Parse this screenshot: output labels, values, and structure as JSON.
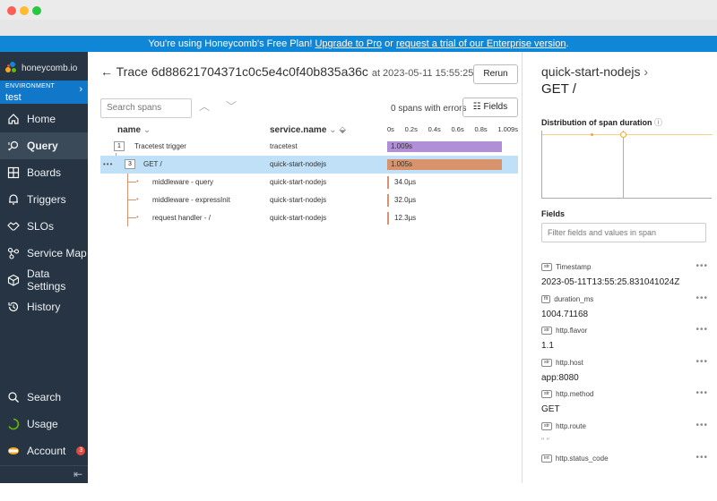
{
  "banner": {
    "prefix": "You're using Honeycomb's Free Plan! ",
    "upgrade": "Upgrade to Pro",
    "mid": " or ",
    "trial": "request a trial of our Enterprise version",
    "suffix": "."
  },
  "sidebar": {
    "logo": "honeycomb.io",
    "environment_label": "ENVIRONMENT",
    "environment_value": "test",
    "items": [
      {
        "label": "Home",
        "icon": "home-icon"
      },
      {
        "label": "Query",
        "icon": "query-icon"
      },
      {
        "label": "Boards",
        "icon": "boards-icon"
      },
      {
        "label": "Triggers",
        "icon": "bell-icon"
      },
      {
        "label": "SLOs",
        "icon": "handshake-icon"
      },
      {
        "label": "Service Map",
        "icon": "service-map-icon"
      },
      {
        "label": "Data Settings",
        "icon": "cube-icon"
      },
      {
        "label": "History",
        "icon": "history-icon"
      }
    ],
    "bottom": [
      {
        "label": "Search",
        "icon": "search-icon"
      },
      {
        "label": "Usage",
        "icon": "usage-icon"
      },
      {
        "label": "Account",
        "icon": "account-icon",
        "badge": "3"
      }
    ]
  },
  "trace": {
    "back": "←",
    "title_prefix": "Trace",
    "id": "6d88621704371c0c5e4c0f40b835a36c",
    "at": "at 2023-05-11 15:55:25",
    "rerun": "Rerun",
    "search_placeholder": "Search spans",
    "errors": "0 spans with errors",
    "fields_button": "Fields",
    "col_name": "name",
    "col_service": "service.name",
    "ticks": [
      "0s",
      "0.2s",
      "0.4s",
      "0.6s",
      "0.8s",
      "1.009s"
    ],
    "rows": [
      {
        "count": "1",
        "name": "Tracetest trigger",
        "service": "tracetest",
        "duration": "1.009s"
      },
      {
        "count": "3",
        "name": "GET /",
        "service": "quick-start-nodejs",
        "duration": "1.005s"
      },
      {
        "name": "middleware - query",
        "service": "quick-start-nodejs",
        "duration": "34.0µs"
      },
      {
        "name": "middleware - expressInit",
        "service": "quick-start-nodejs",
        "duration": "32.0µs"
      },
      {
        "name": "request handler - /",
        "service": "quick-start-nodejs",
        "duration": "12.3µs"
      }
    ]
  },
  "details": {
    "service": "quick-start-nodejs",
    "operation": "GET /",
    "distribution_label": "Distribution of span duration",
    "fields_label": "Fields",
    "filter_placeholder": "Filter fields and values in span",
    "fields": [
      {
        "type": "str",
        "key": "Timestamp",
        "value": "2023-05-11T13:55:25.831041024Z"
      },
      {
        "type": "flt",
        "key": "duration_ms",
        "value": "1004.71168"
      },
      {
        "type": "str",
        "key": "http.flavor",
        "value": "1.1"
      },
      {
        "type": "str",
        "key": "http.host",
        "value": "app:8080"
      },
      {
        "type": "str",
        "key": "http.method",
        "value": "GET"
      },
      {
        "type": "str",
        "key": "http.route",
        "value": "\" \""
      },
      {
        "type": "int",
        "key": "http.status_code",
        "value": ""
      }
    ]
  },
  "colors": {
    "accent": "#0f86d6",
    "trigger_bar": "#b08fd6",
    "get_bar": "#d9936c",
    "sidebar": "#263443"
  }
}
